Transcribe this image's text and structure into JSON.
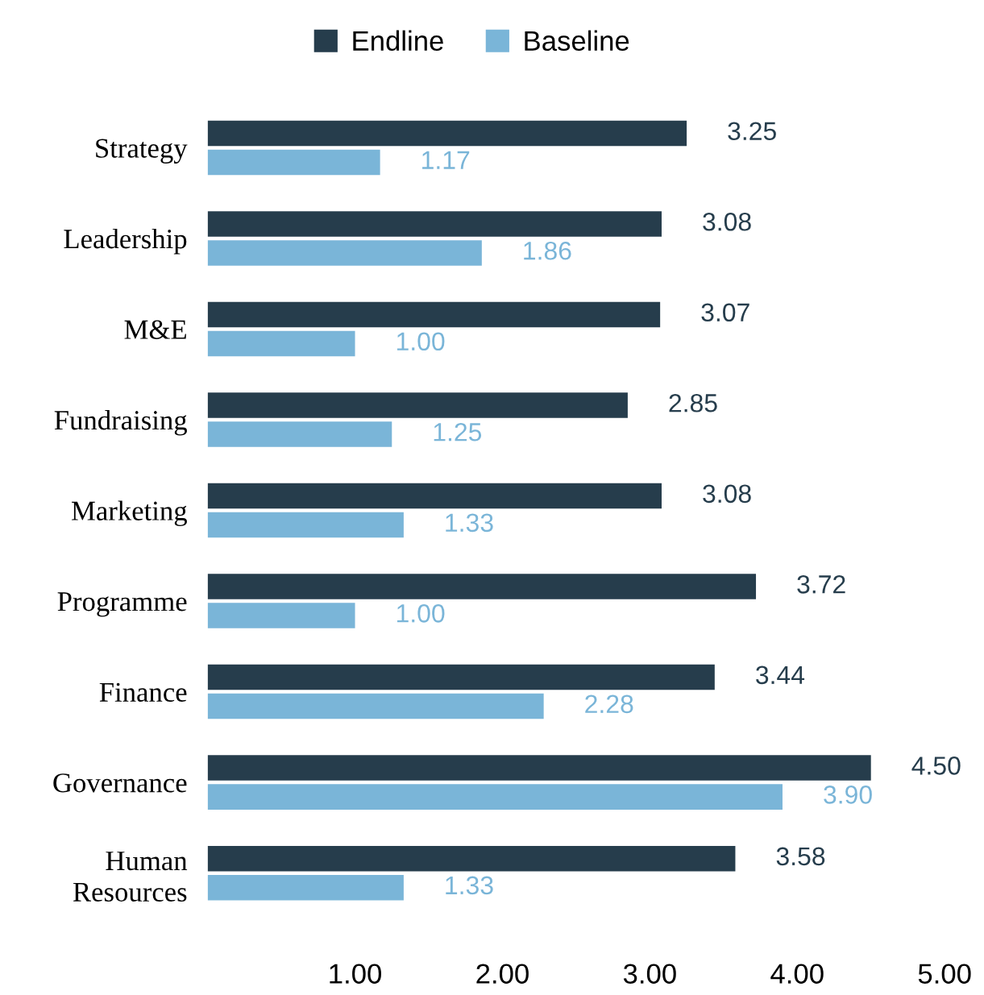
{
  "chart_data": {
    "type": "bar",
    "orientation": "horizontal",
    "categories": [
      "Strategy",
      "Leadership",
      "M&E",
      "Fundraising",
      "Marketing",
      "Programme",
      "Finance",
      "Governance",
      "Human\nResources"
    ],
    "series": [
      {
        "name": "Endline",
        "color": "#263d4c",
        "values": [
          3.25,
          3.08,
          3.07,
          2.85,
          3.08,
          3.72,
          3.44,
          4.5,
          3.58
        ],
        "value_labels": [
          "3.25",
          "3.08",
          "3.07",
          "2.85",
          "3.08",
          "3.72",
          "3.44",
          "4.50",
          "3.58"
        ]
      },
      {
        "name": "Baseline",
        "color": "#7ab5d8",
        "values": [
          1.17,
          1.86,
          1.0,
          1.25,
          1.33,
          1.0,
          2.28,
          3.9,
          1.33
        ],
        "value_labels": [
          "1.17",
          "1.86",
          "1.00",
          "1.25",
          "1.33",
          "1.00",
          "2.28",
          "3.90",
          "1.33"
        ]
      }
    ],
    "xlim": [
      0,
      5
    ],
    "xticks": [
      {
        "value": 1,
        "label": "1.00"
      },
      {
        "value": 2,
        "label": "2.00"
      },
      {
        "value": 3,
        "label": "3.00"
      },
      {
        "value": 4,
        "label": "4.00"
      },
      {
        "value": 5,
        "label": "5.00"
      }
    ],
    "grid": false,
    "legend": "top"
  }
}
